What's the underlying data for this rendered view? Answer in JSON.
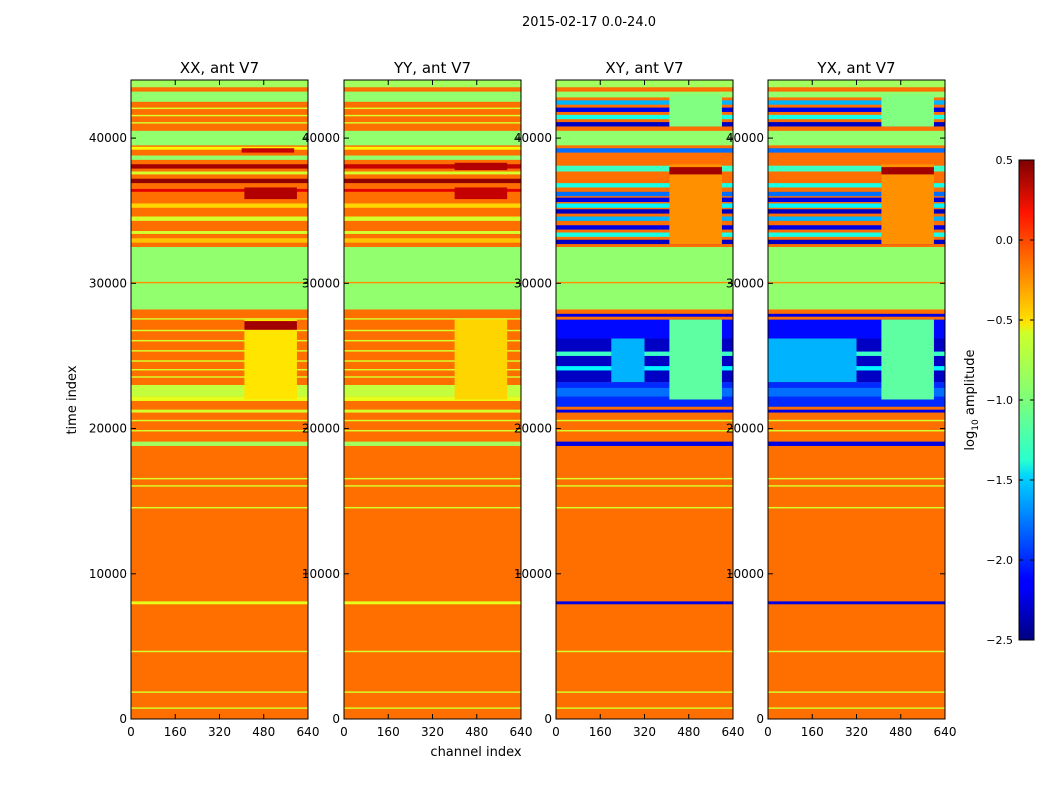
{
  "chart_data": {
    "type": "heatmap",
    "title": "2015-02-17 0.0-24.0",
    "xlabel": "channel index",
    "ylabel": "time index",
    "xlim": [
      0,
      640
    ],
    "ylim": [
      0,
      44000
    ],
    "xticks": [
      0,
      160,
      320,
      480,
      640
    ],
    "yticks": [
      0,
      10000,
      20000,
      30000,
      40000
    ],
    "xtick_labels": [
      "0",
      "160",
      "320",
      "480",
      "640"
    ],
    "ytick_labels": [
      "0",
      "10000",
      "20000",
      "30000",
      "40000"
    ],
    "colorbar": {
      "label": "log10 amplitude",
      "label_base": "log",
      "label_sub": "10",
      "label_rest": " amplitude",
      "range": [
        -2.5,
        0.5
      ],
      "ticks": [
        0.5,
        0.0,
        -0.5,
        -1.0,
        -1.5,
        -2.0,
        -2.5
      ],
      "tick_labels": [
        "0.5",
        "0.0",
        "−0.5",
        "−1.0",
        "−1.5",
        "−2.0",
        "−2.5"
      ],
      "colormap": "jet"
    },
    "panels": [
      {
        "title": "XX, ant V7",
        "base_value": -0.2,
        "bands": [
          {
            "y0": 0,
            "y1": 44000,
            "value": -0.2
          },
          {
            "y0": 700,
            "y1": 800,
            "value": -0.75
          },
          {
            "y0": 1800,
            "y1": 1900,
            "value": -0.75
          },
          {
            "y0": 4600,
            "y1": 4700,
            "value": -0.75
          },
          {
            "y0": 7900,
            "y1": 8100,
            "value": -0.7
          },
          {
            "y0": 14500,
            "y1": 14600,
            "value": -0.75
          },
          {
            "y0": 16000,
            "y1": 16100,
            "value": -0.75
          },
          {
            "y0": 16500,
            "y1": 16600,
            "value": -0.75
          },
          {
            "y0": 18800,
            "y1": 19100,
            "value": -0.9
          },
          {
            "y0": 19800,
            "y1": 19900,
            "value": -0.75
          },
          {
            "y0": 20500,
            "y1": 20600,
            "value": -0.75
          },
          {
            "y0": 21100,
            "y1": 21300,
            "value": -0.75
          },
          {
            "y0": 21900,
            "y1": 22200,
            "value": -0.7
          },
          {
            "y0": 22200,
            "y1": 23000,
            "value": -0.8
          },
          {
            "y0": 23500,
            "y1": 23600,
            "value": -0.75
          },
          {
            "y0": 24000,
            "y1": 24100,
            "value": -0.75
          },
          {
            "y0": 24600,
            "y1": 24700,
            "value": -0.75
          },
          {
            "y0": 25300,
            "y1": 25400,
            "value": -0.75
          },
          {
            "y0": 26000,
            "y1": 26100,
            "value": -0.75
          },
          {
            "y0": 26700,
            "y1": 26800,
            "value": -0.75
          },
          {
            "y0": 27500,
            "y1": 27600,
            "value": -0.75
          },
          {
            "y0": 28200,
            "y1": 32500,
            "value": -0.95
          },
          {
            "y0": 30000,
            "y1": 30100,
            "value": -0.3
          },
          {
            "y0": 32800,
            "y1": 33100,
            "value": -0.45
          },
          {
            "y0": 33400,
            "y1": 33600,
            "value": -0.75
          },
          {
            "y0": 34300,
            "y1": 34600,
            "value": -0.75
          },
          {
            "y0": 35200,
            "y1": 35500,
            "value": -0.5
          },
          {
            "y0": 36300,
            "y1": 36500,
            "value": 0.2
          },
          {
            "y0": 36900,
            "y1": 37200,
            "value": 0.45
          },
          {
            "y0": 37500,
            "y1": 37700,
            "value": -0.75
          },
          {
            "y0": 37900,
            "y1": 38200,
            "value": 0.4
          },
          {
            "y0": 38500,
            "y1": 38800,
            "value": -0.95
          },
          {
            "y0": 39200,
            "y1": 39400,
            "value": -0.6
          },
          {
            "y0": 39500,
            "y1": 40500,
            "value": -0.95
          },
          {
            "y0": 41000,
            "y1": 41100,
            "value": -0.75
          },
          {
            "y0": 41500,
            "y1": 41600,
            "value": -0.75
          },
          {
            "y0": 42000,
            "y1": 42100,
            "value": -0.75
          },
          {
            "y0": 42500,
            "y1": 43200,
            "value": -0.95
          },
          {
            "y0": 43500,
            "y1": 44000,
            "value": -0.9
          }
        ],
        "patches": [
          {
            "x0": 410,
            "x1": 600,
            "y0": 22000,
            "y1": 27500,
            "value": -0.55
          },
          {
            "x0": 410,
            "x1": 600,
            "y0": 26800,
            "y1": 27400,
            "value": 0.4
          },
          {
            "x0": 410,
            "x1": 600,
            "y0": 35800,
            "y1": 36600,
            "value": 0.35
          },
          {
            "x0": 400,
            "x1": 590,
            "y0": 39000,
            "y1": 39300,
            "value": 0.3
          }
        ]
      },
      {
        "title": "YY, ant V7",
        "base_value": -0.2,
        "bands": [
          {
            "y0": 0,
            "y1": 44000,
            "value": -0.2
          },
          {
            "y0": 700,
            "y1": 800,
            "value": -0.75
          },
          {
            "y0": 1800,
            "y1": 1900,
            "value": -0.75
          },
          {
            "y0": 4600,
            "y1": 4700,
            "value": -0.75
          },
          {
            "y0": 7900,
            "y1": 8100,
            "value": -0.7
          },
          {
            "y0": 14500,
            "y1": 14600,
            "value": -0.75
          },
          {
            "y0": 16000,
            "y1": 16100,
            "value": -0.75
          },
          {
            "y0": 16500,
            "y1": 16600,
            "value": -0.75
          },
          {
            "y0": 18800,
            "y1": 19100,
            "value": -0.9
          },
          {
            "y0": 19800,
            "y1": 19900,
            "value": -0.75
          },
          {
            "y0": 20500,
            "y1": 20600,
            "value": -0.75
          },
          {
            "y0": 21100,
            "y1": 21300,
            "value": -0.75
          },
          {
            "y0": 21900,
            "y1": 22200,
            "value": -0.7
          },
          {
            "y0": 22200,
            "y1": 23000,
            "value": -0.8
          },
          {
            "y0": 23500,
            "y1": 23600,
            "value": -0.75
          },
          {
            "y0": 24000,
            "y1": 24100,
            "value": -0.75
          },
          {
            "y0": 24600,
            "y1": 24700,
            "value": -0.75
          },
          {
            "y0": 25300,
            "y1": 25400,
            "value": -0.75
          },
          {
            "y0": 26000,
            "y1": 26100,
            "value": -0.75
          },
          {
            "y0": 26700,
            "y1": 26800,
            "value": -0.75
          },
          {
            "y0": 27500,
            "y1": 27600,
            "value": -0.75
          },
          {
            "y0": 28200,
            "y1": 32500,
            "value": -0.95
          },
          {
            "y0": 30000,
            "y1": 30100,
            "value": -0.3
          },
          {
            "y0": 32800,
            "y1": 33100,
            "value": -0.45
          },
          {
            "y0": 33400,
            "y1": 33600,
            "value": -0.75
          },
          {
            "y0": 34300,
            "y1": 34600,
            "value": -0.75
          },
          {
            "y0": 35200,
            "y1": 35500,
            "value": -0.5
          },
          {
            "y0": 36300,
            "y1": 36500,
            "value": 0.2
          },
          {
            "y0": 36900,
            "y1": 37200,
            "value": 0.45
          },
          {
            "y0": 37500,
            "y1": 37700,
            "value": -0.75
          },
          {
            "y0": 37900,
            "y1": 38200,
            "value": 0.3
          },
          {
            "y0": 38500,
            "y1": 38800,
            "value": -0.95
          },
          {
            "y0": 39200,
            "y1": 39400,
            "value": -0.6
          },
          {
            "y0": 39500,
            "y1": 40500,
            "value": -0.95
          },
          {
            "y0": 41000,
            "y1": 41100,
            "value": -0.75
          },
          {
            "y0": 41500,
            "y1": 41600,
            "value": -0.75
          },
          {
            "y0": 42000,
            "y1": 42100,
            "value": -0.75
          },
          {
            "y0": 42500,
            "y1": 43200,
            "value": -0.95
          },
          {
            "y0": 43500,
            "y1": 44000,
            "value": -0.9
          }
        ],
        "patches": [
          {
            "x0": 400,
            "x1": 590,
            "y0": 22000,
            "y1": 27500,
            "value": -0.5
          },
          {
            "x0": 400,
            "x1": 590,
            "y0": 35800,
            "y1": 36600,
            "value": 0.3
          },
          {
            "x0": 400,
            "x1": 590,
            "y0": 37800,
            "y1": 38300,
            "value": 0.35
          }
        ]
      },
      {
        "title": "XY, ant V7",
        "base_value": -0.2,
        "bands": [
          {
            "y0": 0,
            "y1": 44000,
            "value": -0.2
          },
          {
            "y0": 700,
            "y1": 800,
            "value": -0.75
          },
          {
            "y0": 1800,
            "y1": 1900,
            "value": -0.75
          },
          {
            "y0": 4600,
            "y1": 4700,
            "value": -0.75
          },
          {
            "y0": 7900,
            "y1": 8100,
            "value": -2.2
          },
          {
            "y0": 14500,
            "y1": 14600,
            "value": -0.75
          },
          {
            "y0": 16000,
            "y1": 16100,
            "value": -0.75
          },
          {
            "y0": 16500,
            "y1": 16600,
            "value": -0.75
          },
          {
            "y0": 18800,
            "y1": 19100,
            "value": -2.2
          },
          {
            "y0": 19800,
            "y1": 19900,
            "value": -0.75
          },
          {
            "y0": 20500,
            "y1": 20600,
            "value": -0.75
          },
          {
            "y0": 21100,
            "y1": 21300,
            "value": -2.2
          },
          {
            "y0": 21500,
            "y1": 23200,
            "value": -2.0
          },
          {
            "y0": 22200,
            "y1": 22800,
            "value": -1.8
          },
          {
            "y0": 23200,
            "y1": 26200,
            "value": -2.3
          },
          {
            "y0": 24000,
            "y1": 24300,
            "value": -1.4
          },
          {
            "y0": 25000,
            "y1": 25300,
            "value": -1.2
          },
          {
            "y0": 26200,
            "y1": 27500,
            "value": -2.1
          },
          {
            "y0": 27700,
            "y1": 27900,
            "value": -2.2
          },
          {
            "y0": 28200,
            "y1": 32500,
            "value": -0.95
          },
          {
            "y0": 30000,
            "y1": 30100,
            "value": -0.3
          },
          {
            "y0": 32700,
            "y1": 33000,
            "value": -2.3
          },
          {
            "y0": 33200,
            "y1": 33500,
            "value": -1.3
          },
          {
            "y0": 33700,
            "y1": 34000,
            "value": -2.2
          },
          {
            "y0": 34300,
            "y1": 34600,
            "value": -1.6
          },
          {
            "y0": 34800,
            "y1": 35100,
            "value": -2.3
          },
          {
            "y0": 35200,
            "y1": 35500,
            "value": -1.4
          },
          {
            "y0": 35600,
            "y1": 35900,
            "value": -2.2
          },
          {
            "y0": 36000,
            "y1": 36300,
            "value": -1.8
          },
          {
            "y0": 36600,
            "y1": 36900,
            "value": -1.3
          },
          {
            "y0": 37700,
            "y1": 38100,
            "value": -1.2
          },
          {
            "y0": 39000,
            "y1": 39300,
            "value": -1.8
          },
          {
            "y0": 39500,
            "y1": 40500,
            "value": -0.95
          },
          {
            "y0": 40800,
            "y1": 41100,
            "value": -2.3
          },
          {
            "y0": 41300,
            "y1": 41600,
            "value": -1.3
          },
          {
            "y0": 41800,
            "y1": 42100,
            "value": -2.2
          },
          {
            "y0": 42300,
            "y1": 42600,
            "value": -1.6
          },
          {
            "y0": 42800,
            "y1": 43200,
            "value": -0.95
          },
          {
            "y0": 43500,
            "y1": 44000,
            "value": -0.9
          }
        ],
        "patches": [
          {
            "x0": 200,
            "x1": 320,
            "y0": 23200,
            "y1": 26200,
            "value": -1.6
          },
          {
            "x0": 410,
            "x1": 600,
            "y0": 22000,
            "y1": 27500,
            "value": -1.1
          },
          {
            "x0": 410,
            "x1": 600,
            "y0": 32700,
            "y1": 38200,
            "value": -0.3
          },
          {
            "x0": 410,
            "x1": 600,
            "y0": 37500,
            "y1": 38000,
            "value": 0.4
          },
          {
            "x0": 410,
            "x1": 600,
            "y0": 40800,
            "y1": 43000,
            "value": -1.0
          }
        ]
      },
      {
        "title": "YX, ant V7",
        "base_value": -0.2,
        "bands": [
          {
            "y0": 0,
            "y1": 44000,
            "value": -0.2
          },
          {
            "y0": 700,
            "y1": 800,
            "value": -0.75
          },
          {
            "y0": 1800,
            "y1": 1900,
            "value": -0.75
          },
          {
            "y0": 4600,
            "y1": 4700,
            "value": -0.75
          },
          {
            "y0": 7900,
            "y1": 8100,
            "value": -2.2
          },
          {
            "y0": 14500,
            "y1": 14600,
            "value": -0.75
          },
          {
            "y0": 16000,
            "y1": 16100,
            "value": -0.75
          },
          {
            "y0": 16500,
            "y1": 16600,
            "value": -0.75
          },
          {
            "y0": 18800,
            "y1": 19100,
            "value": -2.2
          },
          {
            "y0": 19800,
            "y1": 19900,
            "value": -0.75
          },
          {
            "y0": 20500,
            "y1": 20600,
            "value": -0.75
          },
          {
            "y0": 21100,
            "y1": 21300,
            "value": -2.2
          },
          {
            "y0": 21500,
            "y1": 23200,
            "value": -2.0
          },
          {
            "y0": 22200,
            "y1": 22800,
            "value": -1.8
          },
          {
            "y0": 23200,
            "y1": 26200,
            "value": -2.3
          },
          {
            "y0": 24000,
            "y1": 24300,
            "value": -1.4
          },
          {
            "y0": 25000,
            "y1": 25300,
            "value": -1.2
          },
          {
            "y0": 26200,
            "y1": 27500,
            "value": -2.1
          },
          {
            "y0": 27700,
            "y1": 27900,
            "value": -2.2
          },
          {
            "y0": 28200,
            "y1": 32500,
            "value": -0.95
          },
          {
            "y0": 30000,
            "y1": 30100,
            "value": -0.3
          },
          {
            "y0": 32700,
            "y1": 33000,
            "value": -2.3
          },
          {
            "y0": 33200,
            "y1": 33500,
            "value": -1.3
          },
          {
            "y0": 33700,
            "y1": 34000,
            "value": -2.2
          },
          {
            "y0": 34300,
            "y1": 34600,
            "value": -1.6
          },
          {
            "y0": 34800,
            "y1": 35100,
            "value": -2.3
          },
          {
            "y0": 35200,
            "y1": 35500,
            "value": -1.4
          },
          {
            "y0": 35600,
            "y1": 35900,
            "value": -2.2
          },
          {
            "y0": 36000,
            "y1": 36300,
            "value": -1.8
          },
          {
            "y0": 36600,
            "y1": 36900,
            "value": -1.3
          },
          {
            "y0": 37700,
            "y1": 38100,
            "value": -1.2
          },
          {
            "y0": 39000,
            "y1": 39300,
            "value": -1.8
          },
          {
            "y0": 39500,
            "y1": 40500,
            "value": -0.95
          },
          {
            "y0": 40800,
            "y1": 41100,
            "value": -2.3
          },
          {
            "y0": 41300,
            "y1": 41600,
            "value": -1.3
          },
          {
            "y0": 41800,
            "y1": 42100,
            "value": -2.2
          },
          {
            "y0": 42300,
            "y1": 42600,
            "value": -1.6
          },
          {
            "y0": 42800,
            "y1": 43200,
            "value": -0.95
          },
          {
            "y0": 43500,
            "y1": 44000,
            "value": -0.9
          }
        ],
        "patches": [
          {
            "x0": 0,
            "x1": 320,
            "y0": 23200,
            "y1": 26200,
            "value": -1.6
          },
          {
            "x0": 410,
            "x1": 600,
            "y0": 22000,
            "y1": 27500,
            "value": -1.1
          },
          {
            "x0": 410,
            "x1": 600,
            "y0": 32700,
            "y1": 38200,
            "value": -0.3
          },
          {
            "x0": 410,
            "x1": 600,
            "y0": 37500,
            "y1": 38000,
            "value": 0.4
          },
          {
            "x0": 410,
            "x1": 600,
            "y0": 40800,
            "y1": 43000,
            "value": -1.0
          }
        ]
      }
    ]
  }
}
